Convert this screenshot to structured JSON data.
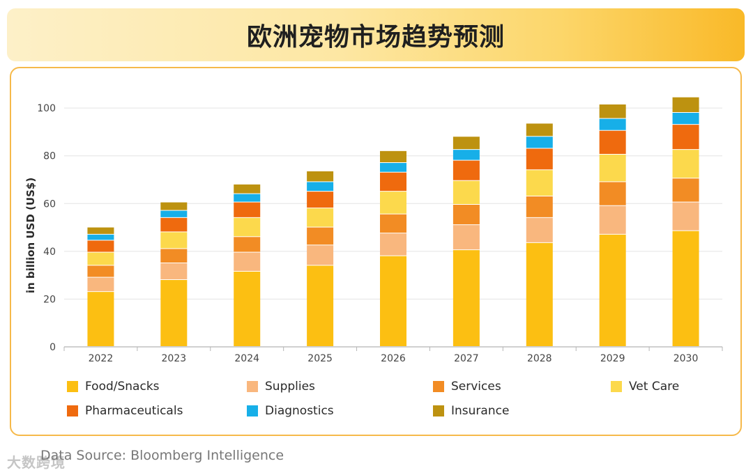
{
  "title": "欧洲宠物市场趋势预测",
  "source": "Data Source: Bloomberg Intelligence",
  "watermark": "大数跨境",
  "chart_data": {
    "type": "bar",
    "stacked": true,
    "title": "欧洲宠物市场趋势预测",
    "xlabel": "",
    "ylabel": "in billion USD (US$)",
    "ylim": [
      0,
      105
    ],
    "yticks": [
      0,
      20,
      40,
      60,
      80,
      100
    ],
    "grid": true,
    "legend_position": "bottom",
    "categories": [
      "2022",
      "2023",
      "2024",
      "2025",
      "2026",
      "2027",
      "2028",
      "2029",
      "2030"
    ],
    "series": [
      {
        "name": "Food/Snacks",
        "color": "#fcbf12",
        "values": [
          23,
          28,
          31.5,
          34,
          38,
          40.5,
          43.5,
          47,
          48.5
        ]
      },
      {
        "name": "Supplies",
        "color": "#f9b77e",
        "values": [
          6,
          7,
          8,
          8.5,
          9.5,
          10.5,
          10.5,
          12,
          12
        ]
      },
      {
        "name": "Services",
        "color": "#f28c24",
        "values": [
          5,
          6,
          6.5,
          7.5,
          8,
          8.5,
          9,
          10,
          10
        ]
      },
      {
        "name": "Vet Care",
        "color": "#fcd94c",
        "values": [
          5.5,
          7,
          8,
          8,
          9.5,
          10,
          11,
          11.5,
          12
        ]
      },
      {
        "name": "Pharmaceuticals",
        "color": "#ef6a0e",
        "values": [
          5,
          6,
          6.5,
          7,
          8,
          8.5,
          9,
          10,
          10.5
        ]
      },
      {
        "name": "Diagnostics",
        "color": "#17afe8",
        "values": [
          2.5,
          3,
          3.5,
          4,
          4,
          4.5,
          5,
          5,
          5
        ]
      },
      {
        "name": "Insurance",
        "color": "#bd9210",
        "values": [
          3,
          3.5,
          4,
          4.5,
          5,
          5.5,
          5.5,
          6,
          6.5
        ]
      }
    ]
  }
}
